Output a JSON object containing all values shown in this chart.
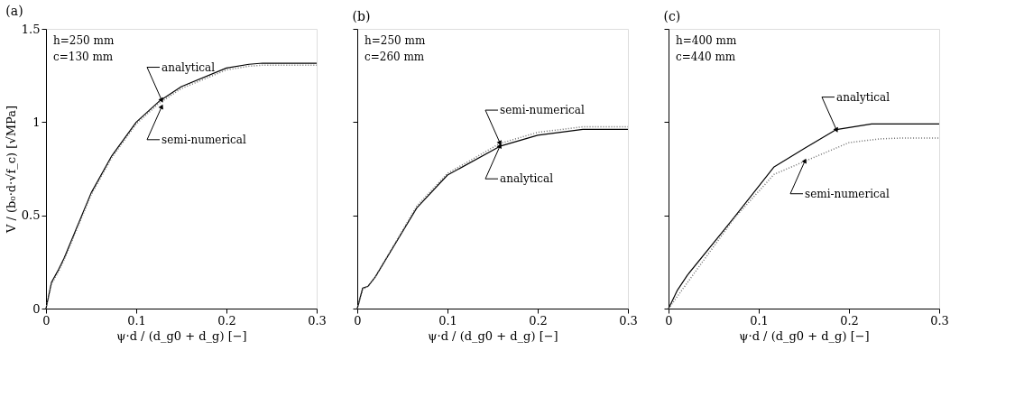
{
  "chart_data": [
    {
      "type": "line",
      "title": "(a)",
      "xlabel": "ψ·d / (d_g0 + d_g) [−]",
      "ylabel": "V / (b₀·d·√f_c) [√MPa]",
      "xlim": [
        0,
        0.3
      ],
      "ylim": [
        0,
        1.5
      ],
      "xticks": [
        0,
        0.1,
        0.2,
        0.3
      ],
      "yticks": [
        0,
        0.5,
        1,
        1.5
      ],
      "grid": false,
      "annotations": [
        "h=250 mm",
        "c=130 mm",
        {
          "text": "analytical",
          "x": 0.128,
          "y": 1.12
        },
        {
          "text": "semi-numerical",
          "x": 0.128,
          "y": 1.08
        }
      ],
      "series": [
        {
          "color": "#000000",
          "line_style": "solid",
          "x": [
            0,
            0.006,
            0.014,
            0.02,
            0.05,
            0.073,
            0.1,
            0.125,
            0.15,
            0.2,
            0.225,
            0.24,
            0.3
          ],
          "values": [
            0,
            0.14,
            0.21,
            0.27,
            0.62,
            0.82,
            1.0,
            1.11,
            1.19,
            1.29,
            1.31,
            1.316,
            1.316
          ]
        },
        {
          "color": "#707070",
          "line_style": "dotted",
          "x": [
            0,
            0.006,
            0.014,
            0.02,
            0.05,
            0.073,
            0.1,
            0.125,
            0.15,
            0.2,
            0.225,
            0.24,
            0.3
          ],
          "values": [
            0,
            0.13,
            0.2,
            0.26,
            0.61,
            0.81,
            0.99,
            1.1,
            1.18,
            1.28,
            1.3,
            1.305,
            1.305
          ]
        }
      ]
    },
    {
      "type": "line",
      "title": "(b)",
      "xlabel": "ψ·d / (d_g0 + d_g) [−]",
      "xlim": [
        0,
        0.3
      ],
      "ylim": [
        0,
        1.5
      ],
      "xticks": [
        0,
        0.1,
        0.2,
        0.3
      ],
      "yticks": [
        0,
        0.5,
        1,
        1.5
      ],
      "tick_labels": "x",
      "grid": false,
      "annotations": [
        "h=250 mm",
        "c=260 mm",
        {
          "text": "semi-numerical",
          "x": 0.158,
          "y": 0.89
        },
        {
          "text": "analytical",
          "x": 0.158,
          "y": 0.87
        }
      ],
      "series": [
        {
          "color": "#000000",
          "line_style": "solid",
          "x": [
            0,
            0.006,
            0.012,
            0.02,
            0.066,
            0.1,
            0.158,
            0.2,
            0.25,
            0.3
          ],
          "values": [
            0,
            0.11,
            0.12,
            0.17,
            0.54,
            0.716,
            0.87,
            0.93,
            0.961,
            0.961
          ]
        },
        {
          "color": "#707070",
          "line_style": "dotted",
          "x": [
            0,
            0.006,
            0.012,
            0.02,
            0.066,
            0.1,
            0.158,
            0.2,
            0.25,
            0.3
          ],
          "values": [
            0,
            0.1,
            0.12,
            0.17,
            0.55,
            0.725,
            0.885,
            0.945,
            0.975,
            0.975
          ]
        }
      ]
    },
    {
      "type": "line",
      "title": "(c)",
      "xlabel": "ψ·d / (d_g0 + d_g) [−]",
      "xlim": [
        0,
        0.3
      ],
      "ylim": [
        0,
        1.5
      ],
      "xticks": [
        0,
        0.1,
        0.2,
        0.3
      ],
      "yticks": [
        0,
        0.5,
        1,
        1.5
      ],
      "tick_labels": "x",
      "grid": false,
      "annotations": [
        "h=400 mm",
        "c=440 mm",
        {
          "text": "analytical",
          "x": 0.186,
          "y": 0.96
        },
        {
          "text": "semi-numerical",
          "x": 0.151,
          "y": 0.79
        }
      ],
      "series": [
        {
          "color": "#000000",
          "line_style": "solid",
          "x": [
            0,
            0.01,
            0.021,
            0.073,
            0.117,
            0.151,
            0.186,
            0.225,
            0.25,
            0.3
          ],
          "values": [
            0,
            0.1,
            0.18,
            0.49,
            0.76,
            0.86,
            0.96,
            0.99,
            0.99,
            0.99
          ]
        },
        {
          "color": "#707070",
          "line_style": "dotted",
          "x": [
            0,
            0.021,
            0.073,
            0.117,
            0.151,
            0.2,
            0.234,
            0.26,
            0.3
          ],
          "values": [
            0,
            0.14,
            0.485,
            0.72,
            0.79,
            0.89,
            0.91,
            0.915,
            0.915
          ]
        }
      ]
    }
  ]
}
